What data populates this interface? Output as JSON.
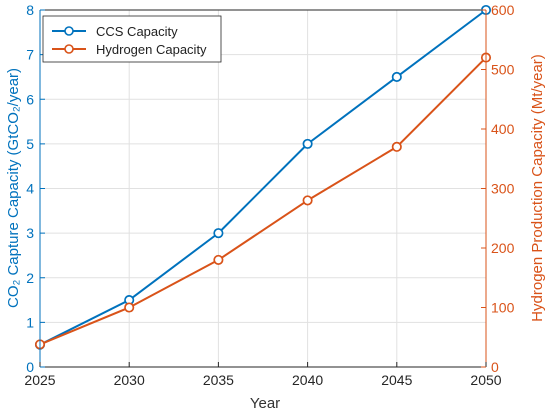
{
  "chart_data": {
    "type": "line",
    "x": [
      2025,
      2030,
      2035,
      2040,
      2045,
      2050
    ],
    "xlabel": "Year",
    "xlim": [
      2025,
      2050
    ],
    "xticks": [
      2025,
      2030,
      2035,
      2040,
      2045,
      2050
    ],
    "grid": true,
    "legend_position": "top-left",
    "y_left": {
      "label": "CO₂ Capture Capacity (GtCO₂/year)",
      "ylim": [
        0,
        8
      ],
      "ticks": [
        0,
        1,
        2,
        3,
        4,
        5,
        6,
        7,
        8
      ],
      "color": "#0072BD"
    },
    "y_right": {
      "label": "Hydrogen Production Capacity (Mt/year)",
      "ylim": [
        0,
        600
      ],
      "ticks": [
        0,
        100,
        200,
        300,
        400,
        500,
        600
      ],
      "color": "#D95319"
    },
    "series": [
      {
        "name": "CCS Capacity",
        "axis": "left",
        "values": [
          0.5,
          1.5,
          3.0,
          5.0,
          6.5,
          8.0
        ],
        "color": "#0072BD",
        "marker": "circle"
      },
      {
        "name": "Hydrogen Capacity",
        "axis": "right",
        "values": [
          38,
          100,
          180,
          280,
          370,
          520
        ],
        "color": "#D95319",
        "marker": "circle"
      }
    ]
  }
}
